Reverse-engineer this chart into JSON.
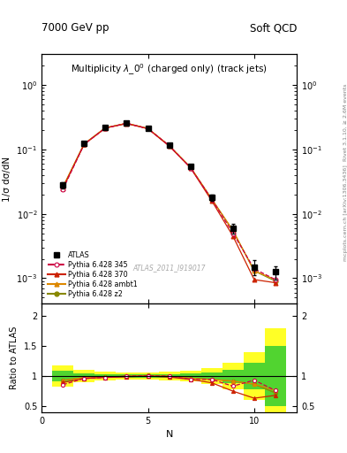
{
  "title_left": "7000 GeV pp",
  "title_right": "Soft QCD",
  "main_title": "Multiplicity $\\lambda\\_0^0$ (charged only) (track jets)",
  "watermark": "ATLAS_2011_I919017",
  "right_label_top": "Rivet 3.1.10, ≥ 2.6M events",
  "right_label_bot": "mcplots.cern.ch [arXiv:1306.3436]",
  "atlas_x": [
    1,
    2,
    3,
    4,
    5,
    6,
    7,
    8,
    9,
    10,
    11
  ],
  "atlas_y": [
    0.028,
    0.125,
    0.22,
    0.255,
    0.21,
    0.115,
    0.055,
    0.018,
    0.006,
    0.0015,
    0.00125
  ],
  "atlas_yerr": [
    0.003,
    0.006,
    0.008,
    0.009,
    0.008,
    0.006,
    0.004,
    0.002,
    0.001,
    0.0004,
    0.0003
  ],
  "p345_x": [
    1,
    2,
    3,
    4,
    5,
    6,
    7,
    8,
    9,
    10,
    11
  ],
  "p345_y": [
    0.024,
    0.12,
    0.215,
    0.255,
    0.21,
    0.115,
    0.052,
    0.017,
    0.005,
    0.0014,
    0.00095
  ],
  "p345_color": "#cc0044",
  "p345_label": "Pythia 6.428 345",
  "p370_x": [
    1,
    2,
    3,
    4,
    5,
    6,
    7,
    8,
    9,
    10,
    11
  ],
  "p370_y": [
    0.025,
    0.12,
    0.215,
    0.252,
    0.21,
    0.113,
    0.052,
    0.016,
    0.0045,
    0.00095,
    0.00085
  ],
  "p370_color": "#cc2200",
  "p370_label": "Pythia 6.428 370",
  "pambt1_x": [
    1,
    2,
    3,
    4,
    5,
    6,
    7,
    8,
    9,
    10,
    11
  ],
  "pambt1_y": [
    0.026,
    0.122,
    0.217,
    0.255,
    0.212,
    0.115,
    0.053,
    0.017,
    0.0055,
    0.0013,
    0.00095
  ],
  "pambt1_color": "#dd8800",
  "pambt1_label": "Pythia 6.428 ambt1",
  "pz2_x": [
    1,
    2,
    3,
    4,
    5,
    6,
    7,
    8,
    9,
    10,
    11
  ],
  "pz2_y": [
    0.026,
    0.122,
    0.217,
    0.254,
    0.212,
    0.114,
    0.053,
    0.017,
    0.0055,
    0.0013,
    0.0009
  ],
  "pz2_color": "#888800",
  "pz2_label": "Pythia 6.428 z2",
  "ratio_345": [
    0.857,
    0.96,
    0.977,
    1.0,
    1.0,
    1.0,
    0.945,
    0.944,
    0.833,
    0.933,
    0.76
  ],
  "ratio_370": [
    0.893,
    0.96,
    0.977,
    0.988,
    1.0,
    0.983,
    0.945,
    0.889,
    0.75,
    0.633,
    0.68
  ],
  "ratio_ambt1": [
    0.929,
    0.976,
    0.986,
    1.0,
    1.01,
    1.0,
    0.964,
    0.944,
    0.917,
    0.867,
    0.76
  ],
  "ratio_z2": [
    0.929,
    0.976,
    0.986,
    0.996,
    1.01,
    0.991,
    0.964,
    0.944,
    0.917,
    0.867,
    0.72
  ],
  "band_x_edges": [
    0.5,
    1.5,
    2.5,
    3.5,
    4.5,
    5.5,
    6.5,
    7.5,
    8.5,
    9.5,
    10.5,
    11.5
  ],
  "band_yellow": [
    0.18,
    0.1,
    0.07,
    0.06,
    0.06,
    0.07,
    0.09,
    0.13,
    0.22,
    0.4,
    0.8,
    1.1
  ],
  "band_green": [
    0.09,
    0.05,
    0.035,
    0.03,
    0.03,
    0.035,
    0.045,
    0.065,
    0.11,
    0.22,
    0.5,
    0.75
  ],
  "ylim_main": [
    0.0004,
    3.0
  ],
  "ylim_ratio": [
    0.4,
    2.2
  ],
  "xlim": [
    0,
    12
  ],
  "xlabel": "N",
  "ylabel_main": "1/σ dσ/dN",
  "ylabel_ratio": "Ratio to ATLAS"
}
